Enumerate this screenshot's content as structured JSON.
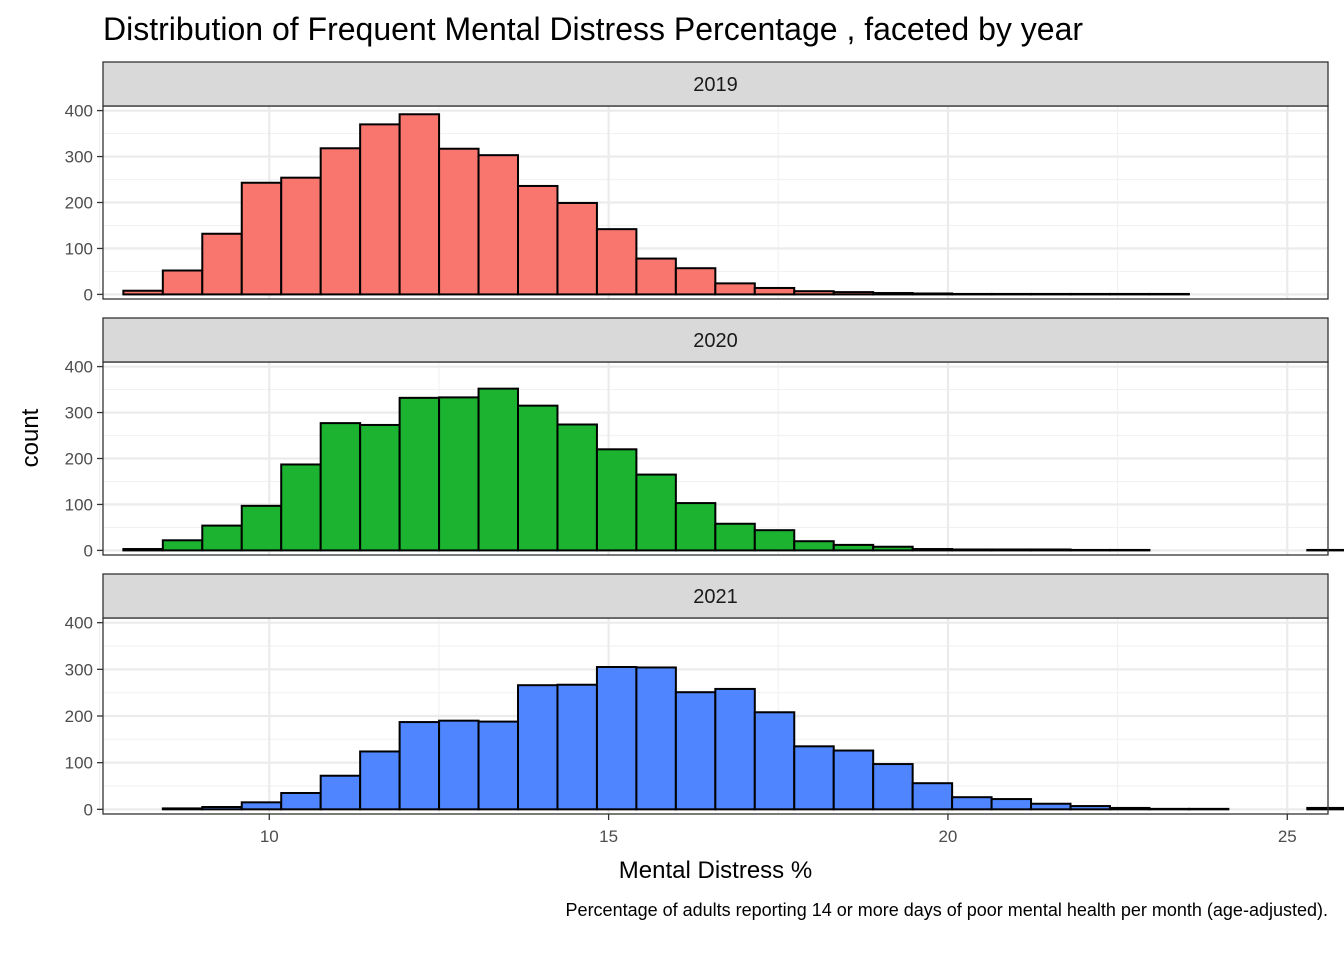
{
  "chart_data": {
    "type": "histogram",
    "title": "Distribution of Frequent Mental Distress Percentage , faceted by year",
    "xlabel": "Mental Distress %",
    "ylabel": "count",
    "caption": "Percentage of adults reporting 14 or more days of poor mental health per month (age-adjusted).",
    "xlim": [
      7.55,
      25.6
    ],
    "ylim": [
      -10,
      410
    ],
    "x_ticks": [
      10,
      15,
      20,
      25
    ],
    "y_ticks": [
      0,
      100,
      200,
      300,
      400
    ],
    "bin_start": 7.85,
    "bin_width": 0.5815,
    "grid": true,
    "theme": "bw",
    "facet_by": "year",
    "facets": [
      {
        "label": "2019",
        "color": "#F8766D",
        "counts": [
          8,
          52,
          132,
          243,
          254,
          318,
          370,
          392,
          317,
          303,
          236,
          199,
          142,
          78,
          57,
          24,
          14,
          7,
          5,
          3,
          2,
          1,
          1,
          1,
          1,
          1,
          1,
          0,
          0,
          0,
          0
        ]
      },
      {
        "label": "2020",
        "color": "#1BB32F",
        "counts": [
          3,
          22,
          54,
          97,
          187,
          277,
          273,
          332,
          333,
          352,
          315,
          274,
          220,
          165,
          103,
          58,
          44,
          20,
          12,
          8,
          3,
          2,
          2,
          2,
          1,
          1,
          0,
          0,
          0,
          0,
          1
        ]
      },
      {
        "label": "2021",
        "color": "#4F86FF",
        "counts": [
          0,
          2,
          5,
          15,
          35,
          72,
          124,
          187,
          190,
          188,
          266,
          267,
          305,
          304,
          251,
          258,
          208,
          135,
          126,
          97,
          56,
          26,
          22,
          12,
          7,
          3,
          1,
          1,
          0,
          0,
          3
        ]
      }
    ]
  }
}
